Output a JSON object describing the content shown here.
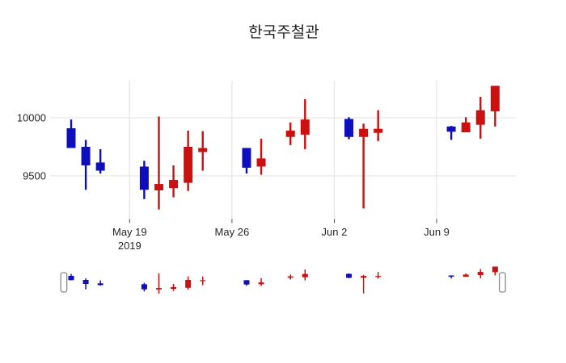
{
  "title": "한국주철관",
  "colors": {
    "background": "#ffffff",
    "increasing": "#cc0f0f",
    "decreasing": "#0e0ebe",
    "grid": "#e6e6e6",
    "axis_text": "#262626",
    "tick_mark": "#444444",
    "slider_handle_fill": "#ffffff",
    "slider_handle_border": "#8a8a8a"
  },
  "chart_data": {
    "type": "candlestick",
    "title": "한국주철관",
    "legend": "none",
    "grid": "on",
    "rangeslider": true,
    "ylim": [
      9150,
      10330
    ],
    "y_ticks": [
      {
        "label": "10000",
        "value": 10000
      },
      {
        "label": "9500",
        "value": 9500
      }
    ],
    "x_ticks": [
      {
        "label": "May 19",
        "sublabel": "2019",
        "date": "2019-05-19"
      },
      {
        "label": "May 26",
        "sublabel": "",
        "date": "2019-05-26"
      },
      {
        "label": "Jun 2",
        "sublabel": "",
        "date": "2019-06-02"
      },
      {
        "label": "Jun 9",
        "sublabel": "",
        "date": "2019-06-09"
      }
    ],
    "candles": [
      {
        "date": "2019-05-15",
        "open": 9910,
        "high": 9985,
        "low": 9740,
        "close": 9740
      },
      {
        "date": "2019-05-16",
        "open": 9750,
        "high": 9810,
        "low": 9380,
        "close": 9590
      },
      {
        "date": "2019-05-17",
        "open": 9615,
        "high": 9730,
        "low": 9520,
        "close": 9545
      },
      {
        "date": "2019-05-20",
        "open": 9580,
        "high": 9630,
        "low": 9300,
        "close": 9380
      },
      {
        "date": "2019-05-21",
        "open": 9375,
        "high": 10010,
        "low": 9210,
        "close": 9430
      },
      {
        "date": "2019-05-22",
        "open": 9395,
        "high": 9590,
        "low": 9315,
        "close": 9465
      },
      {
        "date": "2019-05-23",
        "open": 9440,
        "high": 9890,
        "low": 9370,
        "close": 9750
      },
      {
        "date": "2019-05-24",
        "open": 9705,
        "high": 9885,
        "low": 9545,
        "close": 9740
      },
      {
        "date": "2019-05-27",
        "open": 9740,
        "high": 9740,
        "low": 9520,
        "close": 9570
      },
      {
        "date": "2019-05-28",
        "open": 9580,
        "high": 9820,
        "low": 9510,
        "close": 9650
      },
      {
        "date": "2019-05-30",
        "open": 9835,
        "high": 9960,
        "low": 9765,
        "close": 9890
      },
      {
        "date": "2019-05-31",
        "open": 9855,
        "high": 10160,
        "low": 9730,
        "close": 9985
      },
      {
        "date": "2019-06-03",
        "open": 9990,
        "high": 10005,
        "low": 9815,
        "close": 9835
      },
      {
        "date": "2019-06-04",
        "open": 9835,
        "high": 9950,
        "low": 9220,
        "close": 9905
      },
      {
        "date": "2019-06-05",
        "open": 9870,
        "high": 10065,
        "low": 9800,
        "close": 9905
      },
      {
        "date": "2019-06-10",
        "open": 9925,
        "high": 9930,
        "low": 9810,
        "close": 9880
      },
      {
        "date": "2019-06-11",
        "open": 9875,
        "high": 10005,
        "low": 9875,
        "close": 9960
      },
      {
        "date": "2019-06-12",
        "open": 9940,
        "high": 10180,
        "low": 9820,
        "close": 10065
      },
      {
        "date": "2019-06-13",
        "open": 10055,
        "high": 10275,
        "low": 9925,
        "close": 10275
      }
    ]
  }
}
